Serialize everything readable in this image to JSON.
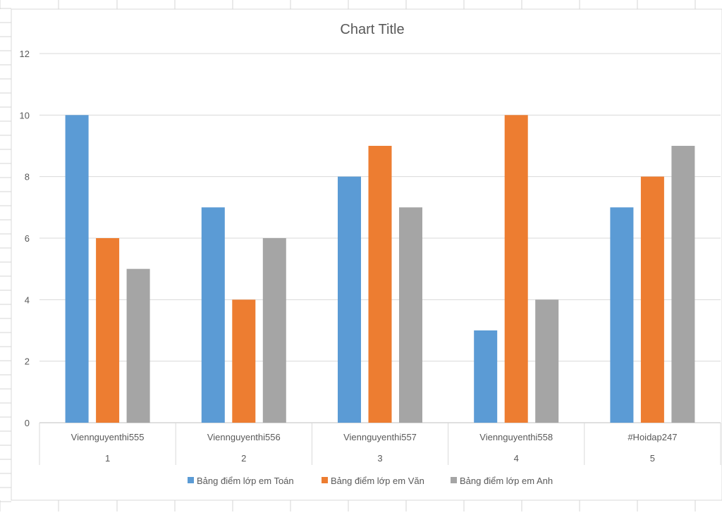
{
  "chart_data": {
    "type": "bar",
    "title": "Chart Title",
    "categories": [
      {
        "name": "Viennguyenthi555",
        "index": "1"
      },
      {
        "name": "Viennguyenthi556",
        "index": "2"
      },
      {
        "name": "Viennguyenthi557",
        "index": "3"
      },
      {
        "name": "Viennguyenthi558",
        "index": "4"
      },
      {
        "name": "#Hoidap247",
        "index": "5"
      }
    ],
    "series": [
      {
        "name": "Bảng điểm lớp em Toán",
        "color": "#5b9bd5",
        "values": [
          10,
          7,
          8,
          3,
          7
        ]
      },
      {
        "name": "Bảng điểm lớp em Văn",
        "color": "#ed7d31",
        "values": [
          6,
          4,
          9,
          10,
          8
        ]
      },
      {
        "name": "Bảng điểm lớp em Anh",
        "color": "#a5a5a5",
        "values": [
          5,
          6,
          7,
          4,
          9
        ]
      }
    ],
    "ylim": [
      0,
      12
    ],
    "yticks": [
      0,
      2,
      4,
      6,
      8,
      10,
      12
    ],
    "grid": true,
    "legend_position": "bottom"
  }
}
